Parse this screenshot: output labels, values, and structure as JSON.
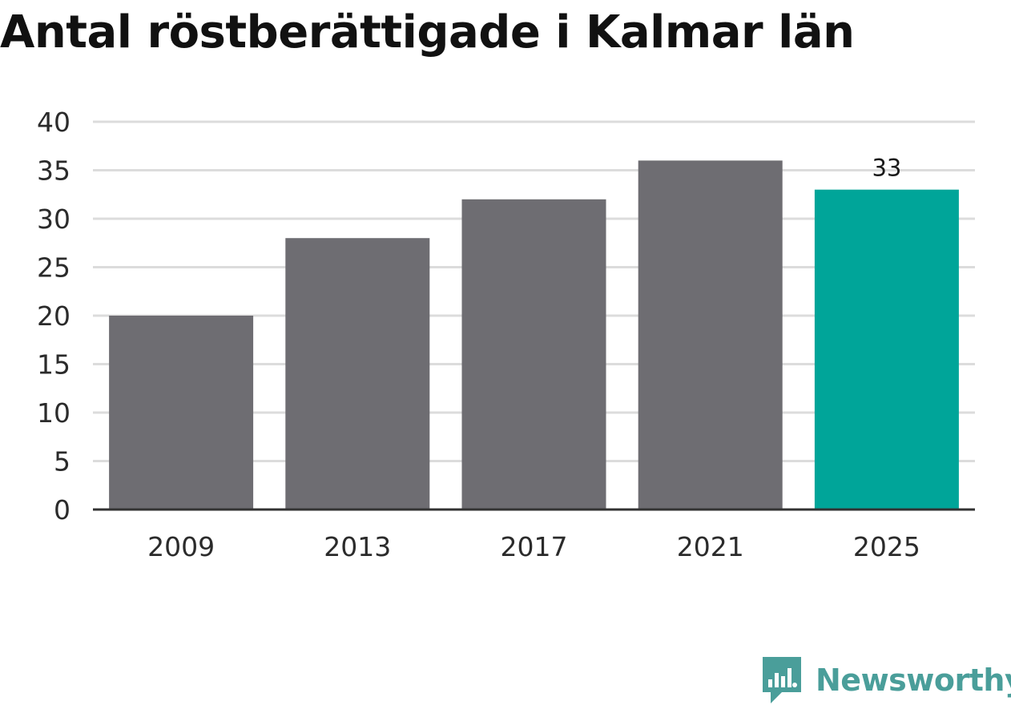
{
  "chart_data": {
    "type": "bar",
    "title": "Antal röstberättigade i Kalmar län",
    "categories": [
      "2009",
      "2013",
      "2017",
      "2021",
      "2025"
    ],
    "values": [
      20,
      28,
      32,
      36,
      33
    ],
    "ylim": [
      0,
      40
    ],
    "yticks": [
      "0",
      "5",
      "10",
      "15",
      "20",
      "25",
      "30",
      "35",
      "40"
    ],
    "xlabel": "",
    "ylabel": "",
    "grid": true,
    "data_labels": [
      {
        "category": "2025",
        "text": "33"
      }
    ],
    "colors": {
      "default_bar": "#6e6d72",
      "highlight_bar": "#00a599",
      "grid": "#dcdcdc",
      "axis": "#333333"
    },
    "highlight_category": "2025"
  },
  "branding": {
    "logo_text": "Newsworthy",
    "logo_icon": "newsworthy-bar-chart-icon",
    "logo_color": "#4a9e9a"
  }
}
